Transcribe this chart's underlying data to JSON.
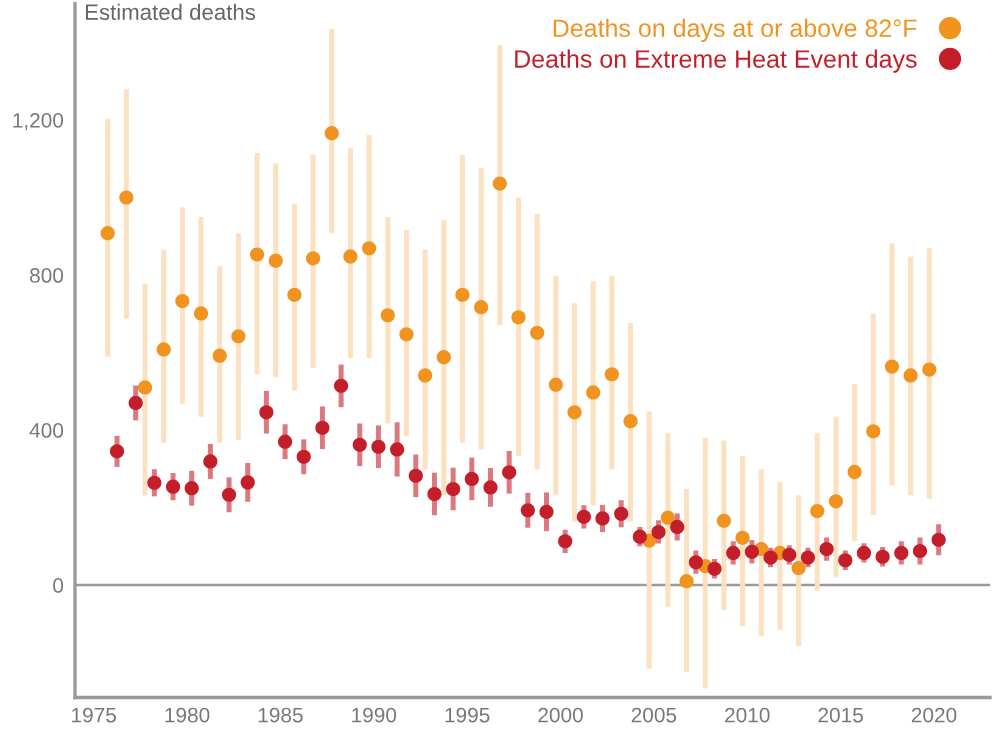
{
  "chart_data": {
    "type": "scatter",
    "ylabel": "Estimated deaths",
    "xlim": [
      1974,
      2023
    ],
    "ylim": [
      -290,
      1500
    ],
    "xticks": [
      1975,
      1980,
      1985,
      1990,
      1995,
      2000,
      2005,
      2010,
      2015,
      2020
    ],
    "yticks": [
      0,
      400,
      800,
      {
        "value": 1200,
        "label": "1,200"
      }
    ],
    "grid": false,
    "legend": "top right",
    "marker": "circle",
    "ref_lines": [
      {
        "axis": "y",
        "value": 0,
        "color": "#9a9a9a"
      }
    ],
    "series": [
      {
        "name": "Deaths on days at or above 82°F",
        "color": "#f0941f",
        "x": [
          1975.75,
          1976.75,
          1977.75,
          1978.75,
          1979.75,
          1980.75,
          1981.75,
          1982.75,
          1983.75,
          1984.75,
          1985.75,
          1986.75,
          1987.75,
          1988.75,
          1989.75,
          1990.75,
          1991.75,
          1992.75,
          1993.75,
          1994.75,
          1995.75,
          1996.75,
          1997.75,
          1998.75,
          1999.75,
          2000.75,
          2001.75,
          2002.75,
          2003.75,
          2004.75,
          2005.75,
          2006.75,
          2007.75,
          2008.75,
          2009.75,
          2010.75,
          2011.75,
          2012.75,
          2013.75,
          2014.75,
          2015.75,
          2016.75,
          2017.75,
          2018.75,
          2019.75
        ],
        "values": [
          908,
          1000,
          510,
          608,
          733,
          701,
          592,
          642,
          853,
          837,
          749,
          843,
          1166,
          848,
          869,
          696,
          647,
          541,
          588,
          749,
          717,
          1036,
          691,
          651,
          517,
          446,
          497,
          544,
          423,
          115,
          174,
          10,
          49,
          166,
          122,
          93,
          83,
          44,
          191,
          216,
          292,
          397,
          564,
          541,
          556
        ],
        "errors": [
          [
            590,
            1203
          ],
          [
            688,
            1279
          ],
          [
            232,
            777
          ],
          [
            367,
            865
          ],
          [
            468,
            975
          ],
          [
            434,
            950
          ],
          [
            367,
            823
          ],
          [
            375,
            907
          ],
          [
            544,
            1115
          ],
          [
            536,
            1088
          ],
          [
            502,
            984
          ],
          [
            561,
            1110
          ],
          [
            908,
            1435
          ],
          [
            586,
            1127
          ],
          [
            586,
            1161
          ],
          [
            417,
            950
          ],
          [
            384,
            916
          ],
          [
            299,
            865
          ],
          [
            232,
            941
          ],
          [
            367,
            1110
          ],
          [
            350,
            1077
          ],
          [
            671,
            1393
          ],
          [
            333,
            1000
          ],
          [
            299,
            958
          ],
          [
            232,
            798
          ],
          [
            164,
            727
          ],
          [
            206,
            784
          ],
          [
            299,
            798
          ],
          [
            164,
            676
          ],
          [
            -216,
            448
          ],
          [
            -56,
            392
          ],
          [
            -225,
            248
          ],
          [
            -267,
            380
          ],
          [
            -64,
            373
          ],
          [
            -106,
            333
          ],
          [
            -132,
            299
          ],
          [
            -115,
            265
          ],
          [
            -157,
            232
          ],
          [
            -14,
            392
          ],
          [
            20,
            434
          ],
          [
            113,
            519
          ],
          [
            181,
            700
          ],
          [
            257,
            882
          ],
          [
            232,
            848
          ],
          [
            223,
            869
          ]
        ]
      },
      {
        "name": "Deaths on Extreme Heat Event days",
        "color": "#c41e2a",
        "x": [
          1976.25,
          1977.25,
          1978.25,
          1979.25,
          1980.25,
          1981.25,
          1982.25,
          1983.25,
          1984.25,
          1985.25,
          1986.25,
          1987.25,
          1988.25,
          1989.25,
          1990.25,
          1991.25,
          1992.25,
          1993.25,
          1994.25,
          1995.25,
          1996.25,
          1997.25,
          1998.25,
          1999.25,
          2000.25,
          2001.25,
          2002.25,
          2003.25,
          2004.25,
          2005.25,
          2006.25,
          2007.25,
          2008.25,
          2009.25,
          2010.25,
          2011.25,
          2012.25,
          2013.25,
          2014.25,
          2015.25,
          2016.25,
          2017.25,
          2018.25,
          2019.25,
          2020.25
        ],
        "values": [
          345,
          470,
          264,
          254,
          250,
          319,
          233,
          265,
          446,
          370,
          331,
          406,
          514,
          362,
          357,
          350,
          282,
          235,
          248,
          274,
          252,
          291,
          193,
          189,
          113,
          176,
          172,
          184,
          125,
          137,
          150,
          59,
          42,
          83,
          86,
          71,
          78,
          71,
          93,
          64,
          83,
          73,
          83,
          88,
          117
        ],
        "errors": [
          40,
          45,
          35,
          35,
          45,
          45,
          45,
          50,
          55,
          45,
          45,
          55,
          55,
          55,
          55,
          70,
          55,
          55,
          55,
          55,
          50,
          55,
          45,
          50,
          30,
          30,
          35,
          35,
          25,
          30,
          35,
          30,
          25,
          30,
          30,
          25,
          25,
          25,
          30,
          25,
          25,
          25,
          30,
          35,
          40
        ]
      }
    ]
  }
}
